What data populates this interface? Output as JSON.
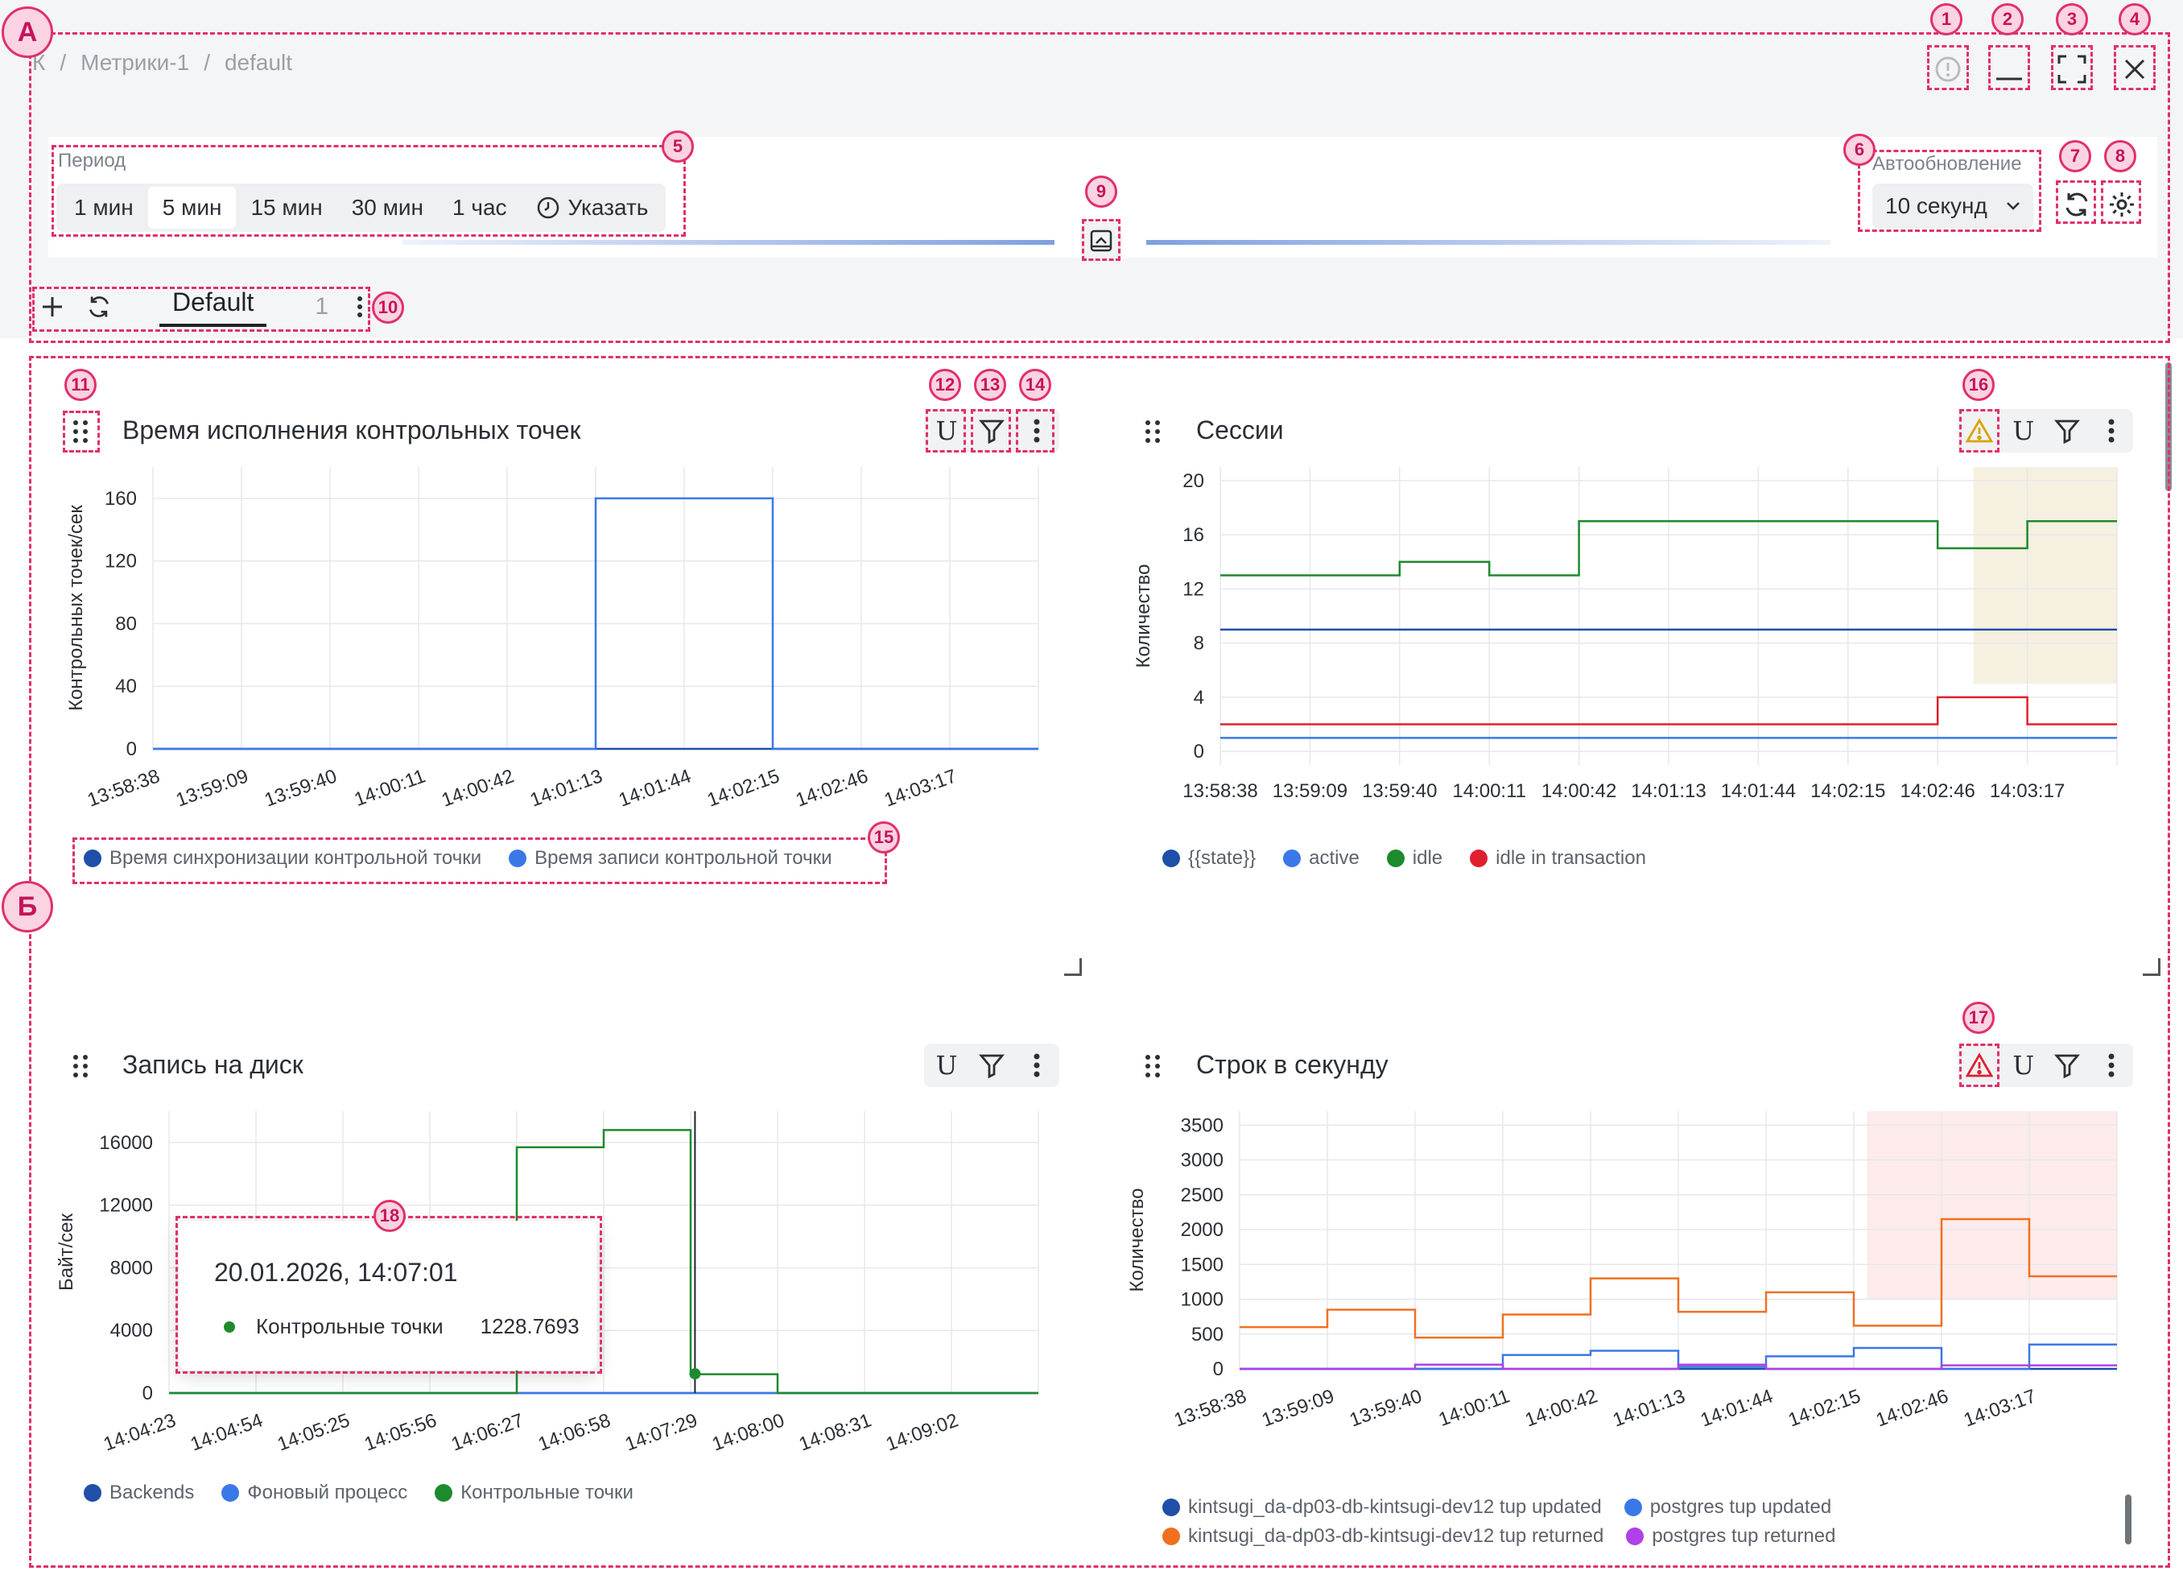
{
  "breadcrumb": {
    "root": "К",
    "sep": "/",
    "item1": "Метрики-1",
    "item2": "default"
  },
  "period": {
    "label": "Период",
    "options": [
      "1 мин",
      "5 мин",
      "15 мин",
      "30 мин",
      "1 час"
    ],
    "selected": "5 мин",
    "custom": "Указать"
  },
  "autoupdate": {
    "label": "Автообновление",
    "value": "10 секунд"
  },
  "tabs": {
    "active": "Default",
    "count": "1"
  },
  "annotations": {
    "section_a": "А",
    "section_b": "Б",
    "n1": "1",
    "n2": "2",
    "n3": "3",
    "n4": "4",
    "n5": "5",
    "n6": "6",
    "n7": "7",
    "n8": "8",
    "n9": "9",
    "n10": "10",
    "n11": "11",
    "n12": "12",
    "n13": "13",
    "n14": "14",
    "n15": "15",
    "n16": "16",
    "n17": "17",
    "n18": "18"
  },
  "panels": {
    "p1": {
      "title": "Время исполнения контрольных точек",
      "legend": [
        {
          "label": "Время синхронизации контрольной точки",
          "color": "#1f4fa8"
        },
        {
          "label": "Время записи контрольной точки",
          "color": "#3b78e7"
        }
      ]
    },
    "p2": {
      "title": "Сессии",
      "legend": [
        {
          "label": "{{state}}",
          "color": "#1f4fa8"
        },
        {
          "label": "active",
          "color": "#3b78e7"
        },
        {
          "label": "idle",
          "color": "#1e8a2e"
        },
        {
          "label": "idle in transaction",
          "color": "#e0202e"
        }
      ]
    },
    "p3": {
      "title": "Запись на диск",
      "legend": [
        {
          "label": "Backends",
          "color": "#1f4fa8"
        },
        {
          "label": "Фоновый процесс",
          "color": "#3b78e7"
        },
        {
          "label": "Контрольные точки",
          "color": "#1e8a2e"
        }
      ],
      "tooltip": {
        "date": "20.01.2026, 14:07:01",
        "series": "Контрольные точки",
        "value": "1228.7693"
      }
    },
    "p4": {
      "title": "Строк в секунду",
      "legend": [
        {
          "label": "kintsugi_da-dp03-db-kintsugi-dev12 tup updated",
          "color": "#1f4fa8"
        },
        {
          "label": "postgres tup updated",
          "color": "#3b78e7"
        },
        {
          "label": "kintsugi_da-dp03-db-kintsugi-dev12 tup returned",
          "color": "#f07020"
        },
        {
          "label": "postgres tup returned",
          "color": "#b040e8"
        }
      ]
    }
  },
  "chart_data": [
    {
      "type": "line",
      "title": "Время исполнения контрольных точек",
      "ylabel": "Контрольных точек/сек",
      "x": [
        "13:58:38",
        "13:59:09",
        "13:59:40",
        "14:00:11",
        "14:00:42",
        "14:01:13",
        "14:01:44",
        "14:02:15",
        "14:02:46",
        "14:03:17"
      ],
      "yticks": [
        0,
        40,
        80,
        120,
        160
      ],
      "ylim": [
        0,
        180
      ],
      "series": [
        {
          "name": "Время синхронизации контрольной точки",
          "color": "#1f4fa8",
          "values": [
            0,
            0,
            0,
            0,
            0,
            0,
            0,
            0,
            0,
            0
          ]
        },
        {
          "name": "Время записи контрольной точки",
          "color": "#3b78e7",
          "values": [
            0,
            0,
            0,
            0,
            0,
            160,
            160,
            0,
            0,
            0
          ]
        }
      ]
    },
    {
      "type": "line",
      "title": "Сессии",
      "ylabel": "Количество",
      "x": [
        "13:58:38",
        "13:59:09",
        "13:59:40",
        "14:00:11",
        "14:00:42",
        "14:01:13",
        "14:01:44",
        "14:02:15",
        "14:02:46",
        "14:03:17"
      ],
      "yticks": [
        0,
        4,
        8,
        12,
        16,
        20
      ],
      "ylim": [
        -1,
        21
      ],
      "series": [
        {
          "name": "{{state}}",
          "color": "#1f4fa8",
          "values": [
            9,
            9,
            9,
            9,
            9,
            9,
            9,
            9,
            9,
            9
          ]
        },
        {
          "name": "active",
          "color": "#3b78e7",
          "values": [
            1,
            1,
            1,
            1,
            1,
            1,
            1,
            1,
            1,
            1
          ]
        },
        {
          "name": "idle",
          "color": "#1e8a2e",
          "values": [
            13,
            13,
            14,
            13,
            17,
            17,
            17,
            17,
            15,
            17
          ]
        },
        {
          "name": "idle in transaction",
          "color": "#e0202e",
          "values": [
            2,
            2,
            2,
            2,
            2,
            2,
            2,
            2,
            4,
            2
          ]
        }
      ]
    },
    {
      "type": "line",
      "title": "Запись на диск",
      "ylabel": "Байт/сек",
      "x": [
        "14:04:23",
        "14:04:54",
        "14:05:25",
        "14:05:56",
        "14:06:27",
        "14:06:58",
        "14:07:29",
        "14:08:00",
        "14:08:31",
        "14:09:02"
      ],
      "yticks": [
        0,
        4000,
        8000,
        12000,
        16000
      ],
      "ylim": [
        0,
        18000
      ],
      "series": [
        {
          "name": "Backends",
          "color": "#1f4fa8",
          "values": [
            0,
            0,
            0,
            0,
            0,
            0,
            0,
            0,
            0,
            0
          ]
        },
        {
          "name": "Фоновый процесс",
          "color": "#3b78e7",
          "values": [
            0,
            0,
            0,
            0,
            0,
            0,
            0,
            0,
            0,
            0
          ]
        },
        {
          "name": "Контрольные точки",
          "color": "#1e8a2e",
          "values": [
            0,
            0,
            0,
            0,
            15700,
            16800,
            1200,
            0,
            0,
            0
          ]
        }
      ]
    },
    {
      "type": "line",
      "title": "Строк в секунду",
      "ylabel": "Количество",
      "x": [
        "13:58:38",
        "13:59:09",
        "13:59:40",
        "14:00:11",
        "14:00:42",
        "14:01:13",
        "14:01:44",
        "14:02:15",
        "14:02:46",
        "14:03:17"
      ],
      "yticks": [
        0,
        500,
        1000,
        1500,
        2000,
        2500,
        3000,
        3500
      ],
      "ylim": [
        0,
        3700
      ],
      "series": [
        {
          "name": "kintsugi_da-dp03-db-kintsugi-dev12 tup updated",
          "color": "#1f4fa8",
          "values": [
            0,
            0,
            0,
            0,
            0,
            0,
            0,
            0,
            0,
            0
          ]
        },
        {
          "name": "postgres tup updated",
          "color": "#3b78e7",
          "values": [
            0,
            0,
            0,
            200,
            260,
            30,
            180,
            300,
            0,
            350
          ]
        },
        {
          "name": "kintsugi_da-dp03-db-kintsugi-dev12 tup returned",
          "color": "#f07020",
          "values": [
            600,
            850,
            450,
            780,
            1300,
            820,
            1100,
            620,
            2150,
            1330
          ]
        },
        {
          "name": "postgres tup returned",
          "color": "#b040e8",
          "values": [
            0,
            0,
            60,
            0,
            0,
            60,
            0,
            0,
            50,
            50
          ]
        }
      ]
    }
  ]
}
